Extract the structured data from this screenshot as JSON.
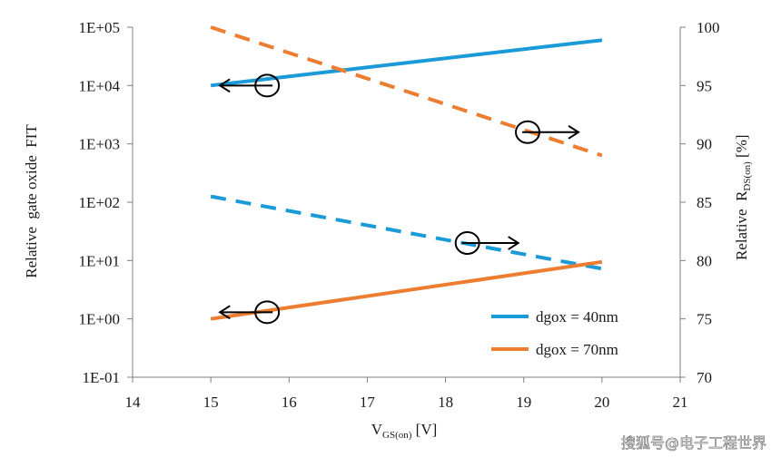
{
  "chart_data": {
    "type": "line",
    "xlabel": "V",
    "xlabel_sub": "GS(on)",
    "xlabel_unit": " [V]",
    "ylabel_left": "Relative  gate oxide  FIT",
    "ylabel_right_pre": "Relative  R",
    "ylabel_right_sub": "DS(on)",
    "ylabel_right_unit": " [%]",
    "x_range": [
      14,
      21
    ],
    "x_ticks": [
      "14",
      "15",
      "16",
      "17",
      "18",
      "19",
      "20",
      "21"
    ],
    "y_left_scale": "log",
    "y_left_range": [
      0.1,
      100000
    ],
    "y_left_ticks": [
      "1E-01",
      "1E+00",
      "1E+01",
      "1E+02",
      "1E+03",
      "1E+04",
      "1E+05"
    ],
    "y_right_range": [
      70,
      100
    ],
    "y_right_ticks": [
      "70",
      "75",
      "80",
      "85",
      "90",
      "95",
      "100"
    ],
    "grid": false,
    "legend_position": "bottom-right",
    "colors": {
      "blue": "#1a9ad6",
      "orange": "#ed7d31",
      "axis": "#7f7f7f",
      "annotation": "#000000"
    },
    "series": [
      {
        "name": "dgox = 40nm",
        "axis": "left",
        "style": "solid",
        "color": "#1a9ad6",
        "x": [
          15,
          20
        ],
        "y": [
          10000,
          60000
        ]
      },
      {
        "name": "dgox = 40nm",
        "axis": "right",
        "style": "dashed",
        "color": "#1a9ad6",
        "x": [
          15,
          20
        ],
        "y": [
          85.5,
          79.3
        ]
      },
      {
        "name": "dgox = 70nm",
        "axis": "left",
        "style": "solid",
        "color": "#ed7d31",
        "x": [
          15,
          20
        ],
        "y": [
          1,
          9.5
        ]
      },
      {
        "name": "dgox = 70nm",
        "axis": "right",
        "style": "dashed",
        "color": "#ed7d31",
        "x": [
          15,
          20
        ],
        "y": [
          100,
          89
        ]
      }
    ],
    "legend": [
      {
        "label": "dgox = 40nm",
        "color": "#1a9ad6"
      },
      {
        "label": "dgox = 70nm",
        "color": "#ed7d31"
      }
    ],
    "annotations": [
      {
        "direction": "left",
        "x": 15.72,
        "y_left": 10000
      },
      {
        "direction": "right",
        "x": 19.05,
        "y_right": 91
      },
      {
        "direction": "right",
        "x": 18.28,
        "y_right": 81.5
      },
      {
        "direction": "left",
        "x": 15.72,
        "y_left": 1.3
      }
    ]
  },
  "watermark": "搜狐号@电子工程世界"
}
